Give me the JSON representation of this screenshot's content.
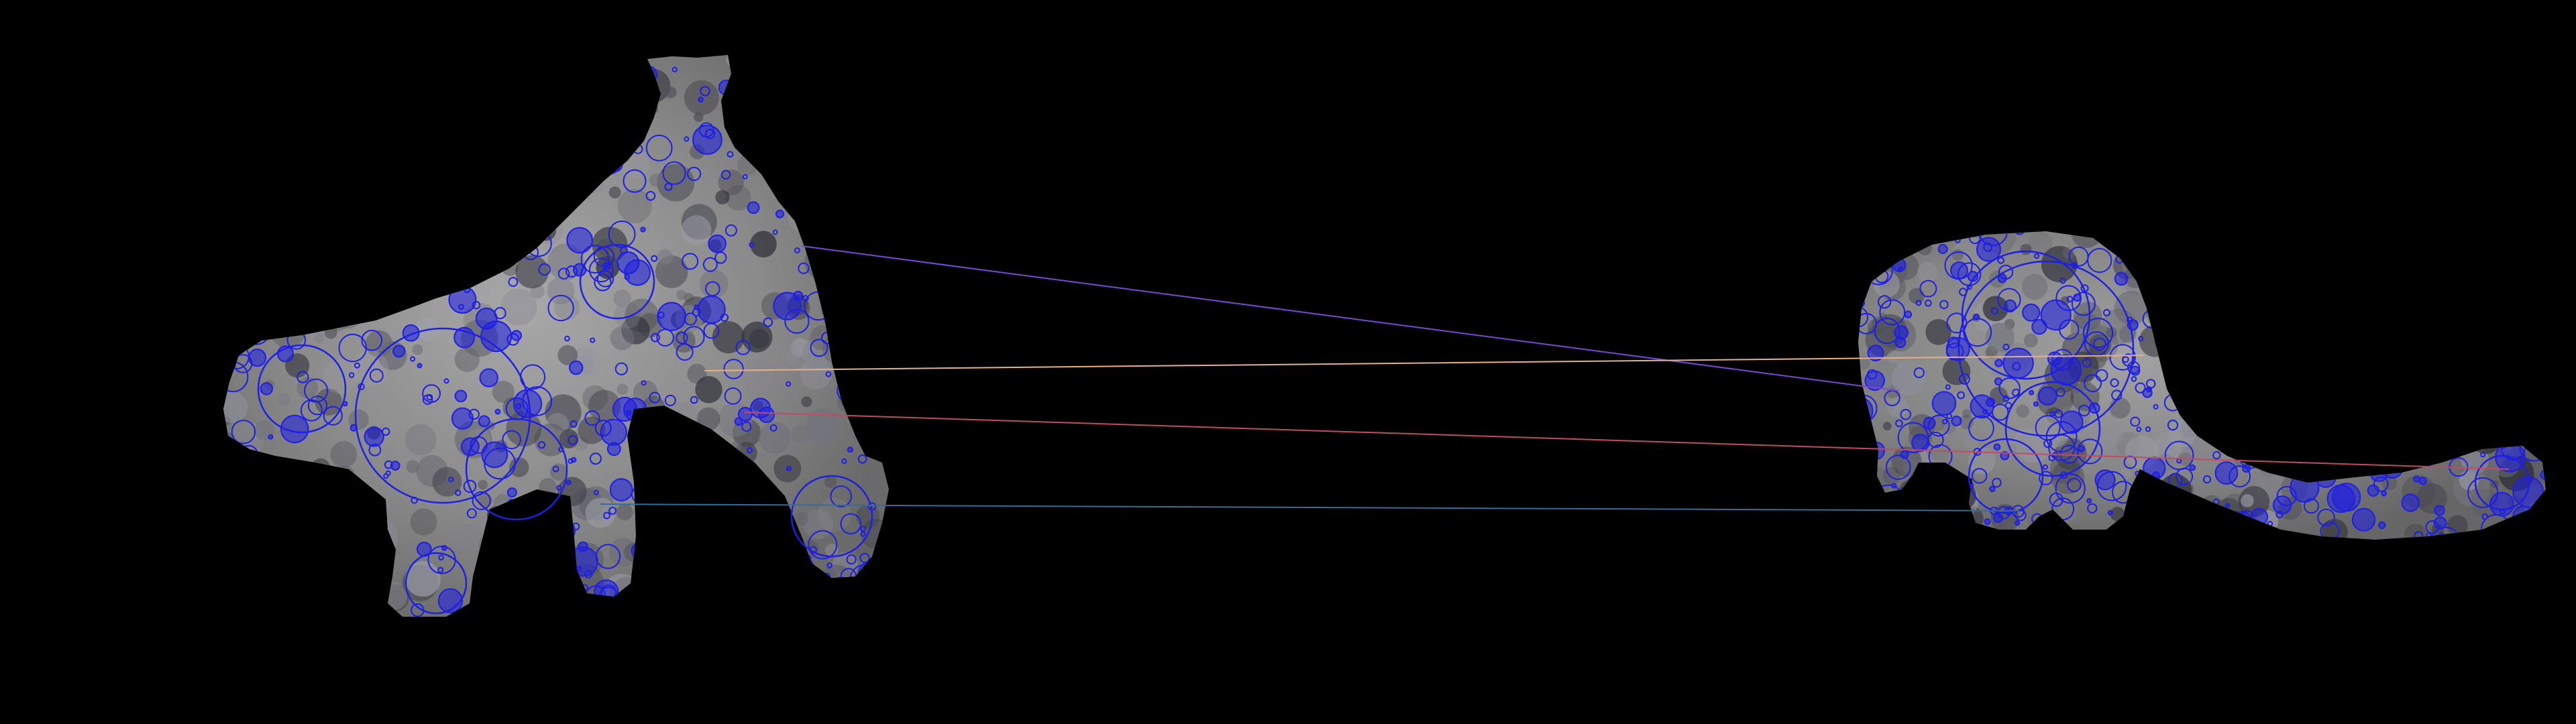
{
  "scene": {
    "background_color": "#000000",
    "shape_fill_color": "#8d8d8d",
    "keypoint_color": "#1e1ee6",
    "left_shape": {
      "keypoint_count": 520
    },
    "right_shape": {
      "keypoint_count": 470
    },
    "correspondence_colors": [
      "#7a46d8",
      "#e3b090",
      "#c04c64",
      "#3a6a96"
    ]
  }
}
